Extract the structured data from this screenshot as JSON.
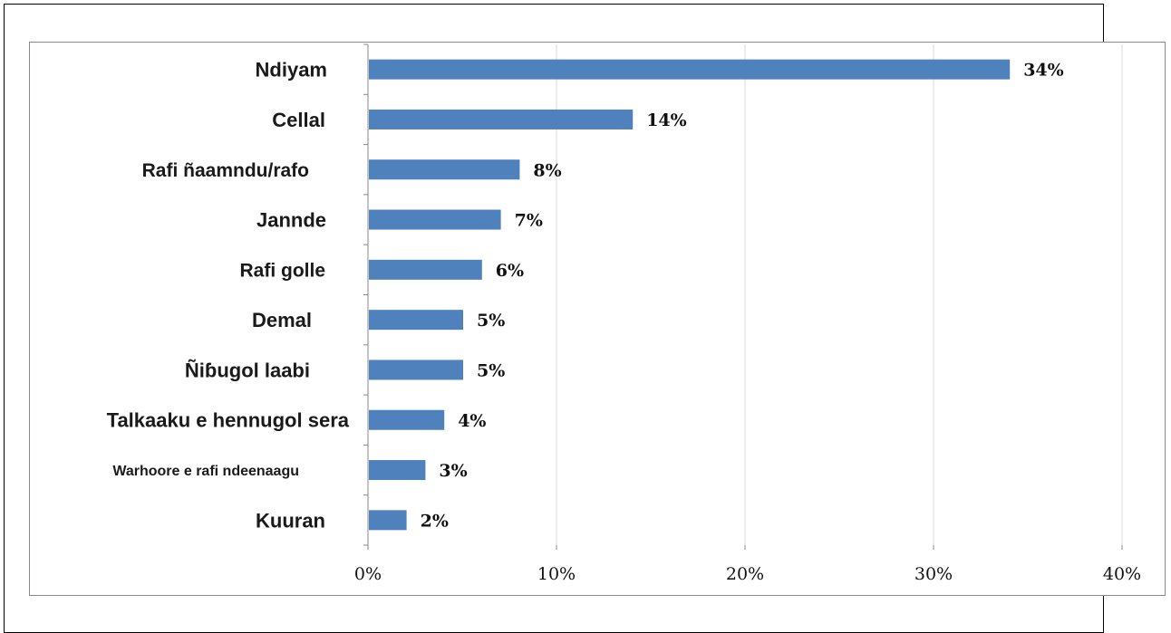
{
  "chart_data": {
    "type": "bar",
    "orientation": "horizontal",
    "categories": [
      "Ndiyam",
      "Cellal",
      "Rafi ñaamndu/rafo",
      "Jannde",
      "Rafi golle",
      "Demal",
      "Ñiɓugol laabi",
      "Talkaaku e hennugol sera",
      "Warhoore  e rafi ndeenaagu",
      "Kuuran"
    ],
    "values": [
      34,
      14,
      8,
      7,
      6,
      5,
      5,
      4,
      3,
      2
    ],
    "value_labels": [
      "34%",
      "14%",
      "8%",
      "7%",
      "6%",
      "5%",
      "5%",
      "4%",
      "3%",
      "2%"
    ],
    "xlim": [
      0,
      40
    ],
    "xticks": [
      0,
      10,
      20,
      30,
      40
    ],
    "xtick_labels": [
      "0%",
      "10%",
      "20%",
      "30%",
      "40%"
    ],
    "title": "",
    "xlabel": "",
    "ylabel": "",
    "grid": "vertical",
    "legend": "none",
    "colors": {
      "bar": "#4f81bd",
      "grid": "#d9d9d9",
      "axis": "#888888"
    }
  }
}
